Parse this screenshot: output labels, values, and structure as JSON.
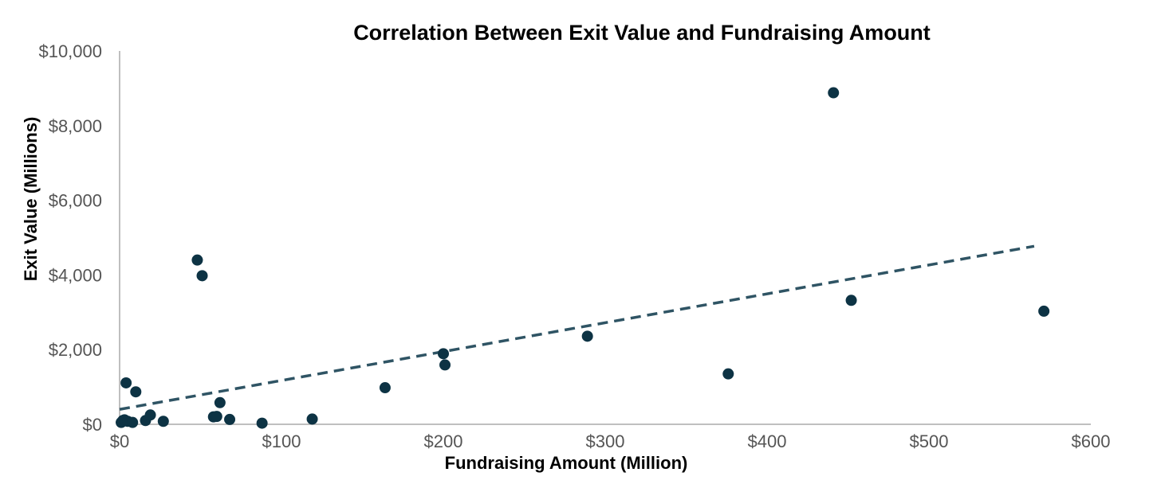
{
  "chart_data": {
    "type": "scatter",
    "title": "Correlation Between Exit Value and Fundraising Amount",
    "xlabel": "Fundraising Amount (Million)",
    "ylabel": "Exit Value (Millions)",
    "xlim": [
      0,
      600
    ],
    "ylim": [
      0,
      10000
    ],
    "x_ticks": [
      0,
      100,
      200,
      300,
      400,
      500,
      600
    ],
    "y_ticks": [
      0,
      2000,
      4000,
      6000,
      8000,
      10000
    ],
    "x_tick_labels": [
      "$0",
      "$100",
      "$200",
      "$300",
      "$400",
      "$500",
      "$600"
    ],
    "y_tick_labels": [
      "$0",
      "$2,000",
      "$4,000",
      "$6,000",
      "$8,000",
      "$10,000"
    ],
    "grid": false,
    "legend": "none",
    "marker_color": "#0d3344",
    "trendline_color": "#2f5464",
    "points": [
      {
        "x": 1,
        "y": 50
      },
      {
        "x": 2,
        "y": 100
      },
      {
        "x": 3,
        "y": 120
      },
      {
        "x": 4,
        "y": 1110
      },
      {
        "x": 5,
        "y": 80
      },
      {
        "x": 8,
        "y": 50
      },
      {
        "x": 10,
        "y": 870
      },
      {
        "x": 16,
        "y": 100
      },
      {
        "x": 19,
        "y": 250
      },
      {
        "x": 27,
        "y": 80
      },
      {
        "x": 48,
        "y": 4400
      },
      {
        "x": 51,
        "y": 3980
      },
      {
        "x": 58,
        "y": 200
      },
      {
        "x": 60,
        "y": 210
      },
      {
        "x": 62,
        "y": 580
      },
      {
        "x": 68,
        "y": 130
      },
      {
        "x": 88,
        "y": 30
      },
      {
        "x": 119,
        "y": 140
      },
      {
        "x": 164,
        "y": 980
      },
      {
        "x": 200,
        "y": 1890
      },
      {
        "x": 201,
        "y": 1590
      },
      {
        "x": 289,
        "y": 2360
      },
      {
        "x": 376,
        "y": 1350
      },
      {
        "x": 441,
        "y": 8880
      },
      {
        "x": 452,
        "y": 3320
      },
      {
        "x": 571,
        "y": 3030
      }
    ],
    "trendline": {
      "style": "dashed",
      "x": [
        0,
        565
      ],
      "y": [
        400,
        4770
      ]
    }
  }
}
